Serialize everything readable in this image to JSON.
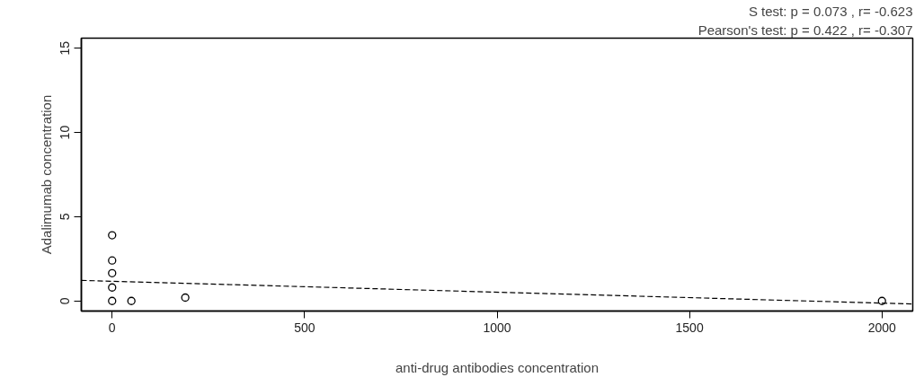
{
  "chart_data": {
    "type": "scatter",
    "xlabel": "anti-drug antibodies concentration",
    "ylabel": "Adalimumab concentration",
    "annotations": [
      "S test: p = 0.073 , r= -0.623",
      "Pearson's test: p = 0.422 , r= -0.307"
    ],
    "xlim": [
      -80,
      2080
    ],
    "ylim": [
      -0.6,
      15.6
    ],
    "xticks": [
      0,
      500,
      1000,
      1500,
      2000
    ],
    "yticks": [
      0,
      5,
      10,
      15
    ],
    "grid": false,
    "marker": "circle",
    "series": [
      {
        "color": "#000000",
        "x": [
          0,
          0,
          0,
          0,
          0,
          50,
          190,
          2000
        ],
        "values": [
          3.9,
          2.4,
          1.65,
          0.8,
          0,
          0,
          0.2,
          0
        ]
      },
      {
        "type": "line",
        "color": "#000000",
        "line_style": "dashed",
        "marker": "none",
        "x": [
          -80,
          2080
        ],
        "values": [
          1.22,
          -0.18
        ]
      }
    ]
  }
}
